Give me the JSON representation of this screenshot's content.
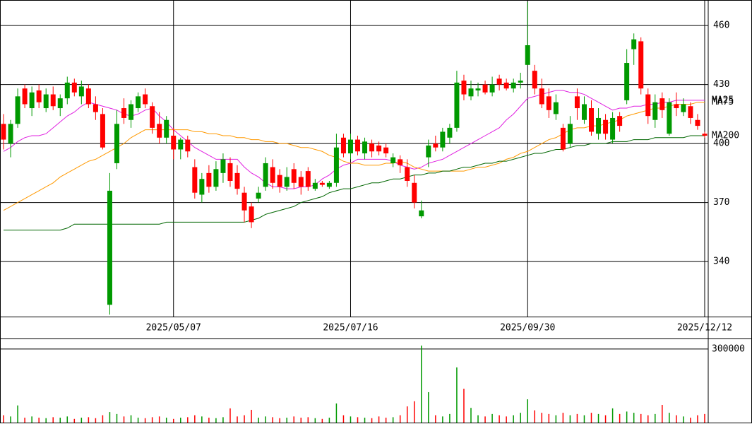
{
  "chart_data": [
    {
      "type": "candlestick",
      "categories": [
        null,
        null,
        null,
        null,
        null,
        null,
        null,
        null,
        null,
        null,
        null,
        null,
        null,
        null,
        null,
        null,
        null,
        null,
        null,
        null,
        null,
        null,
        null,
        null,
        "2025/05/07",
        null,
        null,
        null,
        null,
        null,
        null,
        null,
        null,
        null,
        null,
        null,
        null,
        null,
        null,
        null,
        null,
        null,
        null,
        null,
        null,
        null,
        null,
        null,
        null,
        "2025/07/16",
        null,
        null,
        null,
        null,
        null,
        null,
        null,
        null,
        null,
        null,
        null,
        null,
        null,
        null,
        null,
        null,
        null,
        null,
        null,
        null,
        null,
        null,
        null,
        null,
        "2025/09/30",
        null,
        null,
        null,
        null,
        null,
        null,
        null,
        null,
        null,
        null,
        null,
        null,
        null,
        null,
        null,
        null,
        null,
        null,
        null,
        null,
        null,
        null,
        null,
        null,
        "2025/12/12"
      ],
      "open": [
        410,
        400,
        410,
        428,
        418,
        427,
        418,
        425,
        418,
        423,
        431,
        424,
        428,
        420,
        415,
        318,
        390,
        418,
        412,
        418,
        425,
        419,
        410,
        403,
        404,
        397,
        402,
        388,
        374,
        385,
        378,
        385,
        390,
        385,
        375,
        368,
        372,
        378,
        388,
        384,
        378,
        387,
        383,
        386,
        377,
        380,
        378,
        380,
        403,
        395,
        402,
        395,
        400,
        399,
        398,
        390,
        392,
        388,
        380,
        363,
        393,
        400,
        398,
        403,
        408,
        432,
        424,
        427,
        430,
        426,
        433,
        431,
        428,
        431,
        440,
        437,
        428,
        424,
        415,
        408,
        400,
        424,
        412,
        418,
        405,
        412,
        402,
        414,
        422,
        448,
        452,
        425,
        412,
        423,
        405,
        420,
        416,
        419,
        412,
        405
      ],
      "high": [
        415,
        412,
        428,
        430,
        429,
        430,
        428,
        429,
        425,
        434,
        433,
        432,
        430,
        424,
        418,
        385,
        417,
        423,
        422,
        426,
        428,
        421,
        416,
        414,
        408,
        403,
        404,
        392,
        385,
        389,
        391,
        395,
        393,
        389,
        378,
        370,
        378,
        393,
        392,
        387,
        388,
        390,
        386,
        388,
        382,
        381,
        381,
        405,
        405,
        405,
        404,
        403,
        402,
        401,
        400,
        395,
        394,
        392,
        384,
        371,
        402,
        404,
        408,
        410,
        437,
        435,
        432,
        431,
        432,
        434,
        435,
        433,
        433,
        436,
        472,
        440,
        433,
        428,
        425,
        410,
        414,
        428,
        424,
        422,
        418,
        415,
        416,
        416,
        448,
        456,
        454,
        428,
        425,
        426,
        423,
        426,
        423,
        421,
        415,
        406
      ],
      "low": [
        397,
        393,
        408,
        418,
        414,
        418,
        416,
        417,
        414,
        420,
        424,
        420,
        418,
        412,
        397,
        313,
        387,
        410,
        408,
        416,
        418,
        405,
        400,
        400,
        392,
        392,
        393,
        372,
        370,
        375,
        376,
        380,
        378,
        374,
        360,
        357,
        370,
        376,
        377,
        375,
        376,
        377,
        374,
        376,
        376,
        378,
        377,
        378,
        393,
        392,
        394,
        392,
        393,
        394,
        393,
        388,
        385,
        378,
        367,
        362,
        388,
        396,
        396,
        400,
        406,
        422,
        422,
        424,
        425,
        424,
        427,
        427,
        426,
        428,
        440,
        425,
        418,
        413,
        412,
        396,
        398,
        412,
        410,
        404,
        402,
        402,
        400,
        406,
        420,
        440,
        425,
        410,
        408,
        413,
        404,
        414,
        414,
        410,
        407,
        403
      ],
      "close": [
        402,
        410,
        424,
        420,
        426,
        421,
        425,
        419,
        423,
        431,
        426,
        429,
        420,
        416,
        398,
        376,
        410,
        413,
        420,
        424,
        420,
        408,
        403,
        412,
        397,
        402,
        396,
        375,
        382,
        378,
        387,
        392,
        381,
        377,
        366,
        360,
        375,
        390,
        380,
        378,
        383,
        380,
        378,
        378,
        380,
        379,
        380,
        398,
        395,
        402,
        396,
        401,
        396,
        396,
        395,
        393,
        389,
        381,
        370,
        366,
        399,
        398,
        406,
        408,
        431,
        425,
        428,
        428,
        426,
        430,
        430,
        428,
        431,
        432,
        450,
        428,
        420,
        417,
        421,
        397,
        410,
        418,
        420,
        406,
        413,
        405,
        413,
        409,
        441,
        453,
        428,
        414,
        421,
        417,
        421,
        418,
        420,
        413,
        409,
        404
      ],
      "up_color": "#009900",
      "down_color": "#ff0000",
      "series": [
        {
          "name": "MA25",
          "color": "#e020e0",
          "values": [
            396,
            398,
            401,
            403,
            404,
            404,
            405,
            408,
            411,
            414,
            416,
            419,
            421,
            420,
            419,
            418,
            417,
            415,
            414,
            415,
            417,
            418,
            414,
            411,
            407,
            404,
            401,
            398,
            396,
            394,
            392,
            392,
            392,
            392,
            388,
            385,
            383,
            380,
            378,
            378,
            377,
            377,
            378,
            378,
            379,
            382,
            384,
            387,
            389,
            390,
            392,
            392,
            392,
            392,
            392,
            391,
            389,
            388,
            387,
            388,
            390,
            391,
            392,
            394,
            396,
            398,
            400,
            402,
            404,
            406,
            408,
            412,
            415,
            419,
            423,
            424,
            425,
            426,
            427,
            427,
            426,
            426,
            425,
            423,
            421,
            419,
            417,
            418,
            418,
            419,
            419,
            420,
            420,
            421,
            421,
            422,
            422,
            422,
            422,
            422
          ]
        },
        {
          "name": "MA75",
          "color": "#ff9900",
          "values": [
            366,
            368,
            370,
            372,
            374,
            376,
            378,
            380,
            383,
            385,
            387,
            389,
            391,
            392,
            394,
            396,
            398,
            400,
            403,
            405,
            407,
            407,
            407,
            407,
            407,
            407,
            407,
            406,
            406,
            405,
            405,
            404,
            404,
            403,
            403,
            402,
            402,
            401,
            401,
            400,
            400,
            399,
            398,
            398,
            397,
            396,
            394,
            393,
            391,
            390,
            390,
            389,
            389,
            389,
            390,
            390,
            391,
            390,
            388,
            387,
            386,
            386,
            386,
            386,
            386,
            386,
            387,
            388,
            388,
            389,
            390,
            392,
            393,
            395,
            396,
            398,
            400,
            402,
            403,
            405,
            407,
            408,
            408,
            409,
            409,
            410,
            411,
            412,
            414,
            415,
            416,
            417,
            418,
            418,
            419,
            420,
            420,
            420,
            421,
            421
          ]
        },
        {
          "name": "MA200",
          "color": "#006600",
          "values": [
            356,
            356,
            356,
            356,
            356,
            356,
            356,
            356,
            356,
            357,
            359,
            359,
            359,
            359,
            359,
            359,
            359,
            359,
            359,
            359,
            359,
            359,
            359,
            360,
            360,
            360,
            360,
            360,
            360,
            360,
            360,
            360,
            360,
            360,
            360,
            361,
            362,
            364,
            365,
            366,
            367,
            368,
            370,
            371,
            372,
            373,
            375,
            376,
            377,
            377,
            378,
            379,
            380,
            380,
            381,
            382,
            382,
            383,
            384,
            384,
            385,
            385,
            386,
            386,
            387,
            388,
            388,
            389,
            390,
            390,
            391,
            391,
            392,
            393,
            394,
            395,
            395,
            396,
            397,
            397,
            398,
            399,
            399,
            400,
            400,
            400,
            401,
            401,
            401,
            402,
            402,
            402,
            403,
            403,
            403,
            403,
            403,
            404,
            404,
            404
          ]
        }
      ],
      "ylim": [
        312,
        473
      ],
      "yticks": [
        340,
        370,
        400,
        430,
        460
      ],
      "grid": true
    },
    {
      "type": "bar",
      "values": [
        30000,
        25000,
        70000,
        20000,
        25000,
        20000,
        18000,
        22000,
        20000,
        25000,
        15000,
        20000,
        22000,
        18000,
        30000,
        43000,
        35000,
        25000,
        30000,
        20000,
        18000,
        22000,
        25000,
        20000,
        15000,
        20000,
        22000,
        30000,
        25000,
        20000,
        18000,
        22000,
        58000,
        25000,
        30000,
        52000,
        20000,
        25000,
        22000,
        18000,
        20000,
        25000,
        20000,
        22000,
        18000,
        15000,
        20000,
        78000,
        30000,
        25000,
        22000,
        20000,
        18000,
        25000,
        20000,
        22000,
        30000,
        66000,
        87000,
        314000,
        124000,
        30000,
        25000,
        35000,
        225000,
        138000,
        60000,
        30000,
        25000,
        35000,
        30000,
        25000,
        30000,
        40000,
        95000,
        50000,
        40000,
        35000,
        30000,
        40000,
        30000,
        35000,
        30000,
        40000,
        35000,
        30000,
        58000,
        35000,
        45000,
        40000,
        35000,
        30000,
        35000,
        72000,
        40000,
        30000,
        25000,
        20000,
        30000,
        35000
      ],
      "ylim": [
        0,
        340000
      ],
      "yticks": [
        300000
      ],
      "grid": true
    }
  ]
}
